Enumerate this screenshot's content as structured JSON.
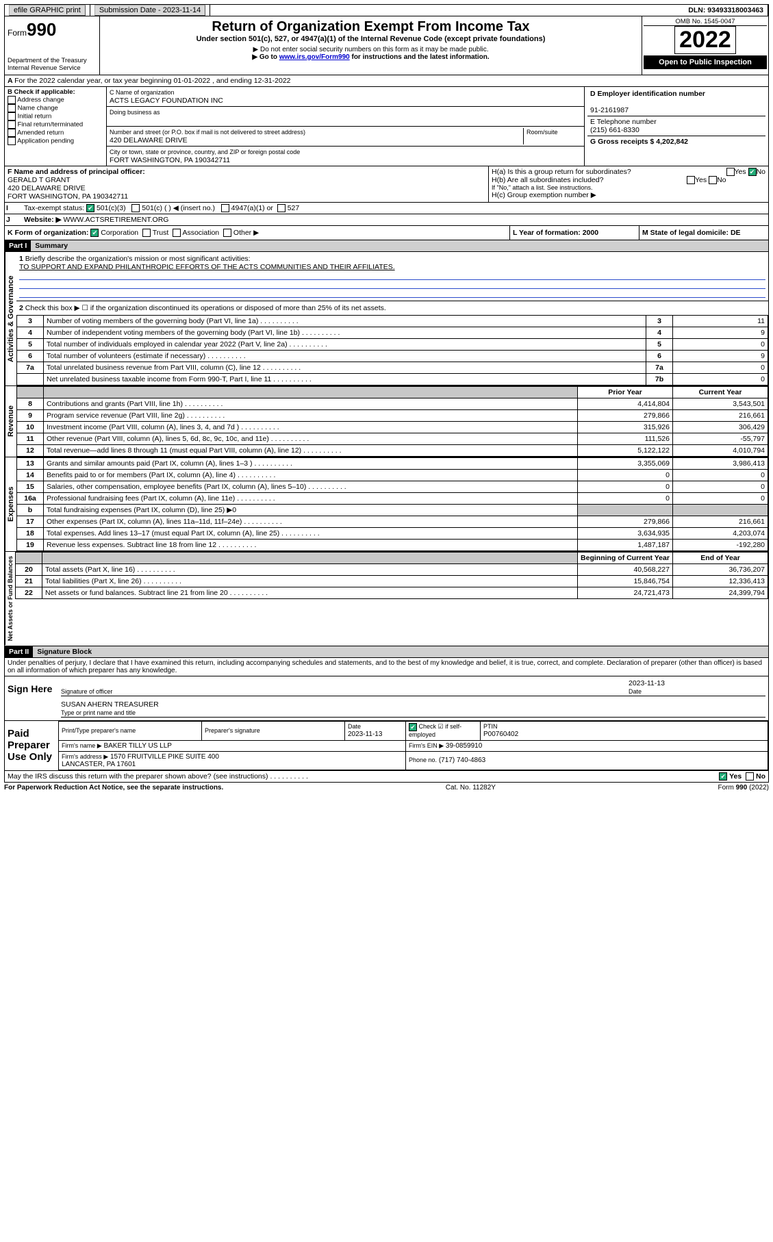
{
  "topbar": {
    "efile": "efile GRAPHIC print",
    "submission_label": "Submission Date - 2023-11-14",
    "dln": "DLN: 93493318003463"
  },
  "header": {
    "form_word": "Form",
    "form_num": "990",
    "dept": "Department of the Treasury Internal Revenue Service",
    "title": "Return of Organization Exempt From Income Tax",
    "subtitle": "Under section 501(c), 527, or 4947(a)(1) of the Internal Revenue Code (except private foundations)",
    "warn1": "▶ Do not enter social security numbers on this form as it may be made public.",
    "warn2_pre": "▶ Go to ",
    "warn2_link": "www.irs.gov/Form990",
    "warn2_post": " for instructions and the latest information.",
    "omb": "OMB No. 1545-0047",
    "year": "2022",
    "open": "Open to Public Inspection"
  },
  "A": {
    "text": "For the 2022 calendar year, or tax year beginning 01-01-2022   , and ending 12-31-2022"
  },
  "B": {
    "label": "B Check if applicable:",
    "items": [
      "Address change",
      "Name change",
      "Initial return",
      "Final return/terminated",
      "Amended return",
      "Application pending"
    ]
  },
  "C": {
    "name_label": "C Name of organization",
    "name": "ACTS LEGACY FOUNDATION INC",
    "dba_label": "Doing business as",
    "addr_label": "Number and street (or P.O. box if mail is not delivered to street address)",
    "room_label": "Room/suite",
    "addr": "420 DELAWARE DRIVE",
    "city_label": "City or town, state or province, country, and ZIP or foreign postal code",
    "city": "FORT WASHINGTON, PA  190342711"
  },
  "D": {
    "label": "D Employer identification number",
    "val": "91-2161987"
  },
  "E": {
    "label": "E Telephone number",
    "val": "(215) 661-8330"
  },
  "G": {
    "label": "G Gross receipts $ 4,202,842"
  },
  "F": {
    "label": "F  Name and address of principal officer:",
    "name": "GERALD T GRANT",
    "addr1": "420 DELAWARE DRIVE",
    "addr2": "FORT WASHINGTON, PA  190342711"
  },
  "H": {
    "a": "H(a)  Is this a group return for subordinates?",
    "b": "H(b)  Are all subordinates included?",
    "b_note": "If \"No,\" attach a list. See instructions.",
    "c": "H(c)  Group exemption number ▶",
    "yes": "Yes",
    "no": "No"
  },
  "I": {
    "label": "Tax-exempt status:",
    "opts": [
      "501(c)(3)",
      "501(c) (  ) ◀ (insert no.)",
      "4947(a)(1) or",
      "527"
    ]
  },
  "J": {
    "label": "Website: ▶",
    "val": "WWW.ACTSRETIREMENT.ORG"
  },
  "K": {
    "label": "K Form of organization:",
    "opts": [
      "Corporation",
      "Trust",
      "Association",
      "Other ▶"
    ]
  },
  "L": {
    "label": "L Year of formation: 2000"
  },
  "M": {
    "label": "M State of legal domicile: DE"
  },
  "part1": {
    "hdr": "Part I",
    "title": "Summary",
    "q1": "Briefly describe the organization's mission or most significant activities:",
    "mission": "TO SUPPORT AND EXPAND PHILANTHROPIC EFFORTS OF THE ACTS COMMUNITIES AND THEIR AFFILIATES.",
    "q2": "Check this box ▶ ☐  if the organization discontinued its operations or disposed of more than 25% of its net assets.",
    "rows_gov": [
      {
        "n": "3",
        "t": "Number of voting members of the governing body (Part VI, line 1a)",
        "k": "3",
        "v": "11"
      },
      {
        "n": "4",
        "t": "Number of independent voting members of the governing body (Part VI, line 1b)",
        "k": "4",
        "v": "9"
      },
      {
        "n": "5",
        "t": "Total number of individuals employed in calendar year 2022 (Part V, line 2a)",
        "k": "5",
        "v": "0"
      },
      {
        "n": "6",
        "t": "Total number of volunteers (estimate if necessary)",
        "k": "6",
        "v": "9"
      },
      {
        "n": "7a",
        "t": "Total unrelated business revenue from Part VIII, column (C), line 12",
        "k": "7a",
        "v": "0"
      },
      {
        "n": "",
        "t": "Net unrelated business taxable income from Form 990-T, Part I, line 11",
        "k": "7b",
        "v": "0"
      }
    ],
    "col_prior": "Prior Year",
    "col_curr": "Current Year",
    "rows_rev": [
      {
        "n": "8",
        "t": "Contributions and grants (Part VIII, line 1h)",
        "p": "4,414,804",
        "c": "3,543,501"
      },
      {
        "n": "9",
        "t": "Program service revenue (Part VIII, line 2g)",
        "p": "279,866",
        "c": "216,661"
      },
      {
        "n": "10",
        "t": "Investment income (Part VIII, column (A), lines 3, 4, and 7d )",
        "p": "315,926",
        "c": "306,429"
      },
      {
        "n": "11",
        "t": "Other revenue (Part VIII, column (A), lines 5, 6d, 8c, 9c, 10c, and 11e)",
        "p": "111,526",
        "c": "-55,797"
      },
      {
        "n": "12",
        "t": "Total revenue—add lines 8 through 11 (must equal Part VIII, column (A), line 12)",
        "p": "5,122,122",
        "c": "4,010,794"
      }
    ],
    "rows_exp": [
      {
        "n": "13",
        "t": "Grants and similar amounts paid (Part IX, column (A), lines 1–3 )",
        "p": "3,355,069",
        "c": "3,986,413"
      },
      {
        "n": "14",
        "t": "Benefits paid to or for members (Part IX, column (A), line 4)",
        "p": "0",
        "c": "0"
      },
      {
        "n": "15",
        "t": "Salaries, other compensation, employee benefits (Part IX, column (A), lines 5–10)",
        "p": "0",
        "c": "0"
      },
      {
        "n": "16a",
        "t": "Professional fundraising fees (Part IX, column (A), line 11e)",
        "p": "0",
        "c": "0"
      },
      {
        "n": "b",
        "t": "Total fundraising expenses (Part IX, column (D), line 25) ▶0",
        "p": "",
        "c": "",
        "shade": true
      },
      {
        "n": "17",
        "t": "Other expenses (Part IX, column (A), lines 11a–11d, 11f–24e)",
        "p": "279,866",
        "c": "216,661"
      },
      {
        "n": "18",
        "t": "Total expenses. Add lines 13–17 (must equal Part IX, column (A), line 25)",
        "p": "3,634,935",
        "c": "4,203,074"
      },
      {
        "n": "19",
        "t": "Revenue less expenses. Subtract line 18 from line 12",
        "p": "1,487,187",
        "c": "-192,280"
      }
    ],
    "col_begin": "Beginning of Current Year",
    "col_end": "End of Year",
    "rows_net": [
      {
        "n": "20",
        "t": "Total assets (Part X, line 16)",
        "p": "40,568,227",
        "c": "36,736,207"
      },
      {
        "n": "21",
        "t": "Total liabilities (Part X, line 26)",
        "p": "15,846,754",
        "c": "12,336,413"
      },
      {
        "n": "22",
        "t": "Net assets or fund balances. Subtract line 21 from line 20",
        "p": "24,721,473",
        "c": "24,399,794"
      }
    ],
    "vlabels": {
      "gov": "Activities & Governance",
      "rev": "Revenue",
      "exp": "Expenses",
      "net": "Net Assets or Fund Balances"
    }
  },
  "part2": {
    "hdr": "Part II",
    "title": "Signature Block",
    "decl": "Under penalties of perjury, I declare that I have examined this return, including accompanying schedules and statements, and to the best of my knowledge and belief, it is true, correct, and complete. Declaration of preparer (other than officer) is based on all information of which preparer has any knowledge.",
    "sign_here": "Sign Here",
    "sig_officer": "Signature of officer",
    "date": "Date",
    "sig_date": "2023-11-13",
    "officer": "SUSAN AHERN TREASURER",
    "officer_label": "Type or print name and title",
    "paid": "Paid Preparer Use Only",
    "prep_name_label": "Print/Type preparer's name",
    "prep_sig_label": "Preparer's signature",
    "prep_date_label": "Date",
    "prep_date": "2023-11-13",
    "check_self": "Check ☑ if self-employed",
    "ptin_label": "PTIN",
    "ptin": "P00760402",
    "firm_name_label": "Firm's name    ▶",
    "firm_name": "BAKER TILLY US LLP",
    "firm_ein_label": "Firm's EIN ▶",
    "firm_ein": "39-0859910",
    "firm_addr_label": "Firm's address ▶",
    "firm_addr1": "1570 FRUITVILLE PIKE SUITE 400",
    "firm_addr2": "LANCASTER, PA  17601",
    "phone_label": "Phone no.",
    "phone": "(717) 740-4863",
    "discuss": "May the IRS discuss this return with the preparer shown above? (see instructions)"
  },
  "footer": {
    "left": "For Paperwork Reduction Act Notice, see the separate instructions.",
    "mid": "Cat. No. 11282Y",
    "right": "Form 990 (2022)"
  }
}
